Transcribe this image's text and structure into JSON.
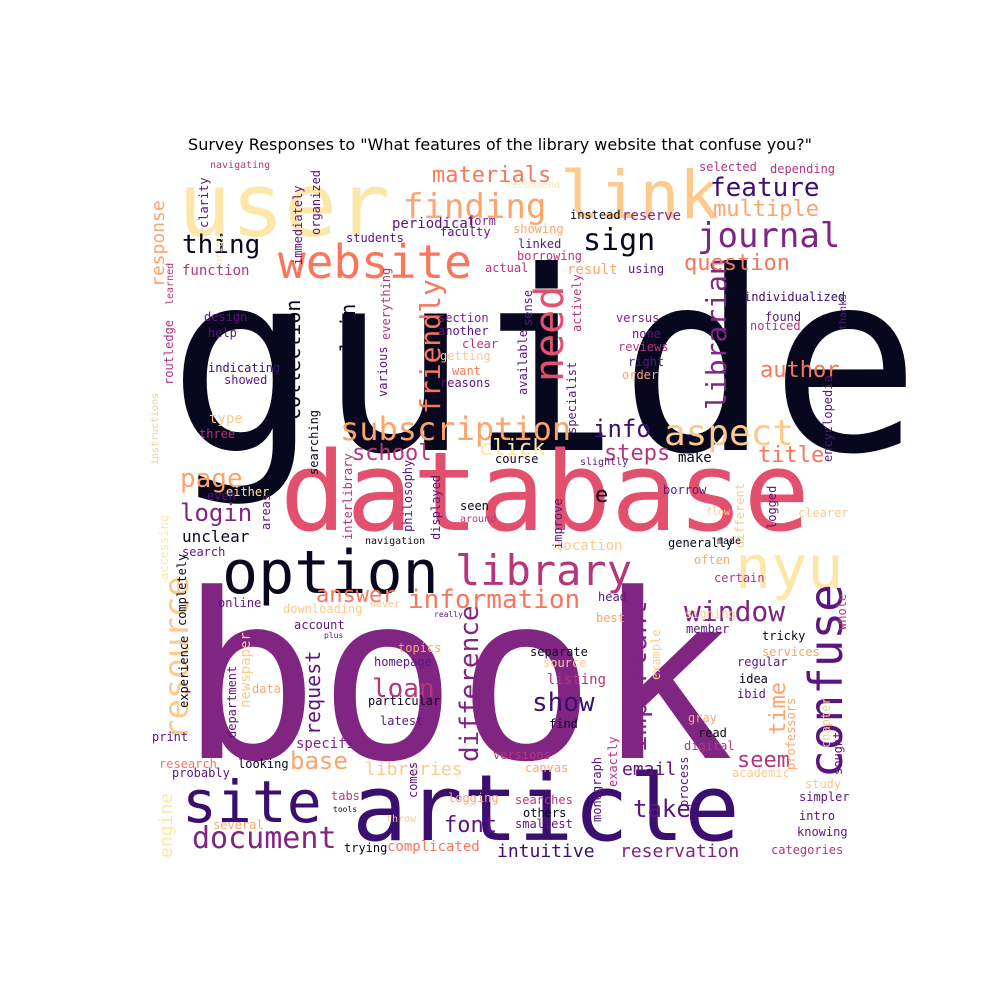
{
  "title": "Survey Responses to \"What features of the library website that confuse you?\"",
  "palette": {
    "black": "#07071d",
    "darkpurple": "#3b0f70",
    "purple": "#5a167e",
    "magenta": "#802582",
    "pink": "#b5367a",
    "red": "#e3506d",
    "salmon": "#f8765c",
    "orange": "#fca46c",
    "peach": "#fec98d",
    "cream": "#fde7a8"
  },
  "words": [
    {
      "text": "guide",
      "c": "black",
      "r": 0
    },
    {
      "text": "book",
      "c": "magenta",
      "r": 0
    },
    {
      "text": "database",
      "c": "red",
      "r": 0
    },
    {
      "text": "article",
      "c": "darkpurple",
      "r": 0
    },
    {
      "text": "user",
      "c": "cream",
      "r": 0
    },
    {
      "text": "link",
      "c": "peach",
      "r": 0
    },
    {
      "text": "option",
      "c": "black",
      "r": 0
    },
    {
      "text": "nyu",
      "c": "cream",
      "r": 0
    },
    {
      "text": "site",
      "c": "darkpurple",
      "r": 0
    },
    {
      "text": "website",
      "c": "salmon",
      "r": 0
    },
    {
      "text": "library",
      "c": "pink",
      "r": 0
    },
    {
      "text": "confuse",
      "c": "purple",
      "r": -90
    },
    {
      "text": "resource",
      "c": "peach",
      "r": -90
    },
    {
      "text": "need",
      "c": "red",
      "r": -90
    },
    {
      "text": "finding",
      "c": "orange",
      "r": 0
    },
    {
      "text": "aspect",
      "c": "peach",
      "r": 0
    },
    {
      "text": "journal",
      "c": "magenta",
      "r": 0
    },
    {
      "text": "subscription",
      "c": "orange",
      "r": 0
    },
    {
      "text": "information",
      "c": "salmon",
      "r": 0
    },
    {
      "text": "document",
      "c": "magenta",
      "r": 0
    },
    {
      "text": "sign",
      "c": "black",
      "r": 0
    },
    {
      "text": "friendly",
      "c": "salmon",
      "r": -90
    },
    {
      "text": "librarian",
      "c": "magenta",
      "r": -90
    },
    {
      "text": "window",
      "c": "magenta",
      "r": 0
    },
    {
      "text": "important",
      "c": "magenta",
      "r": -90
    },
    {
      "text": "difference",
      "c": "magenta",
      "r": -90
    },
    {
      "text": "feature",
      "c": "darkpurple",
      "r": 0
    },
    {
      "text": "thing",
      "c": "black",
      "r": 0
    },
    {
      "text": "materials",
      "c": "salmon",
      "r": 0
    },
    {
      "text": "question",
      "c": "salmon",
      "r": 0
    },
    {
      "text": "multiple",
      "c": "orange",
      "r": 0
    },
    {
      "text": "page",
      "c": "orange",
      "r": 0
    },
    {
      "text": "login",
      "c": "magenta",
      "r": 0
    },
    {
      "text": "school",
      "c": "pink",
      "r": 0
    },
    {
      "text": "info",
      "c": "darkpurple",
      "r": 0
    },
    {
      "text": "author",
      "c": "salmon",
      "r": 0
    },
    {
      "text": "title",
      "c": "salmon",
      "r": 0
    },
    {
      "text": "steps",
      "c": "pink",
      "r": 0
    },
    {
      "text": "click",
      "c": "cream",
      "r": 0
    },
    {
      "text": "answer",
      "c": "salmon",
      "r": 0
    },
    {
      "text": "loan",
      "c": "pink",
      "r": 0
    },
    {
      "text": "show",
      "c": "darkpurple",
      "r": 0
    },
    {
      "text": "base",
      "c": "orange",
      "r": 0
    },
    {
      "text": "font",
      "c": "purple",
      "r": 0
    },
    {
      "text": "take",
      "c": "purple",
      "r": 0
    },
    {
      "text": "seem",
      "c": "pink",
      "r": 0
    },
    {
      "text": "time",
      "c": "orange",
      "r": -90
    },
    {
      "text": "libraries",
      "c": "peach",
      "r": 0
    },
    {
      "text": "email",
      "c": "purple",
      "r": 0
    },
    {
      "text": "intuitive",
      "c": "darkpurple",
      "r": 0
    },
    {
      "text": "reservation",
      "c": "magenta",
      "r": 0
    },
    {
      "text": "complicated",
      "c": "salmon",
      "r": 0
    },
    {
      "text": "engine",
      "c": "cream",
      "r": -90
    },
    {
      "text": "collection",
      "c": "black",
      "r": -90
    },
    {
      "text": "explain",
      "c": "black",
      "r": -90
    },
    {
      "text": "request",
      "c": "purple",
      "r": -90
    },
    {
      "text": "response",
      "c": "orange",
      "r": -90
    },
    {
      "text": "unclear",
      "c": "black",
      "r": 0
    },
    {
      "text": "function",
      "c": "pink",
      "r": 0
    },
    {
      "text": "periodical",
      "c": "purple",
      "r": 0
    },
    {
      "text": "reserve",
      "c": "magenta",
      "r": 0
    },
    {
      "text": "result",
      "c": "orange",
      "r": 0
    },
    {
      "text": "make",
      "c": "black",
      "r": 0
    },
    {
      "text": "location",
      "c": "peach",
      "r": 0
    },
    {
      "text": "listing",
      "c": "pink",
      "r": 0
    },
    {
      "text": "account",
      "c": "purple",
      "r": 0
    },
    {
      "text": "downloading",
      "c": "peach",
      "r": 0
    },
    {
      "text": "specific",
      "c": "magenta",
      "r": 0
    },
    {
      "text": "newspaper",
      "c": "peach",
      "r": -90
    },
    {
      "text": "type",
      "c": "peach",
      "r": 0
    },
    {
      "text": "three",
      "c": "pink",
      "r": 0
    },
    {
      "text": "design",
      "c": "purple",
      "r": 0
    },
    {
      "text": "help",
      "c": "purple",
      "r": 0
    },
    {
      "text": "indicating",
      "c": "darkpurple",
      "r": 0
    },
    {
      "text": "showed",
      "c": "purple",
      "r": 0
    },
    {
      "text": "section",
      "c": "magenta",
      "r": 0
    },
    {
      "text": "another",
      "c": "purple",
      "r": 0
    },
    {
      "text": "clear",
      "c": "pink",
      "r": 0
    },
    {
      "text": "getting",
      "c": "peach",
      "r": 0
    },
    {
      "text": "want",
      "c": "salmon",
      "r": 0
    },
    {
      "text": "reasons",
      "c": "purple",
      "r": 0
    },
    {
      "text": "versus",
      "c": "magenta",
      "r": 0
    },
    {
      "text": "none",
      "c": "purple",
      "r": 0
    },
    {
      "text": "reviews",
      "c": "pink",
      "r": 0
    },
    {
      "text": "right",
      "c": "purple",
      "r": 0
    },
    {
      "text": "order",
      "c": "orange",
      "r": 0
    },
    {
      "text": "found",
      "c": "purple",
      "r": 0
    },
    {
      "text": "noticed",
      "c": "pink",
      "r": 0
    },
    {
      "text": "individualized",
      "c": "darkpurple",
      "r": 0
    },
    {
      "text": "thanks",
      "c": "purple",
      "r": -90
    },
    {
      "text": "using",
      "c": "purple",
      "r": 0
    },
    {
      "text": "selected",
      "c": "pink",
      "r": 0
    },
    {
      "text": "depending",
      "c": "pink",
      "r": 0
    },
    {
      "text": "instead",
      "c": "black",
      "r": 0
    },
    {
      "text": "form",
      "c": "magenta",
      "r": 0
    },
    {
      "text": "showing",
      "c": "orange",
      "r": 0
    },
    {
      "text": "faculty",
      "c": "purple",
      "r": 0
    },
    {
      "text": "linked",
      "c": "purple",
      "r": 0
    },
    {
      "text": "borrowing",
      "c": "pink",
      "r": 0
    },
    {
      "text": "actual",
      "c": "pink",
      "r": 0
    },
    {
      "text": "students",
      "c": "purple",
      "r": 0
    },
    {
      "text": "recommend",
      "c": "cream",
      "r": 0
    },
    {
      "text": "navigating",
      "c": "pink",
      "r": 0
    },
    {
      "text": "clarity",
      "c": "purple",
      "r": -90
    },
    {
      "text": "original",
      "c": "cream",
      "r": -90
    },
    {
      "text": "immediately",
      "c": "purple",
      "r": -90
    },
    {
      "text": "organized",
      "c": "purple",
      "r": -90
    },
    {
      "text": "everything",
      "c": "pink",
      "r": -90
    },
    {
      "text": "various",
      "c": "purple",
      "r": -90
    },
    {
      "text": "learned",
      "c": "pink",
      "r": -90
    },
    {
      "text": "routledge",
      "c": "pink",
      "r": -90
    },
    {
      "text": "instructions",
      "c": "peach",
      "r": -90
    },
    {
      "text": "searching",
      "c": "black",
      "r": -90
    },
    {
      "text": "available",
      "c": "purple",
      "r": -90
    },
    {
      "text": "sense",
      "c": "purple",
      "r": -90
    },
    {
      "text": "specialist",
      "c": "purple",
      "r": -90
    },
    {
      "text": "actively",
      "c": "pink",
      "r": -90
    },
    {
      "text": "encyclopedia",
      "c": "purple",
      "r": -90
    },
    {
      "text": "course",
      "c": "black",
      "r": 0
    },
    {
      "text": "slightly",
      "c": "purple",
      "r": 0
    },
    {
      "text": "borrow",
      "c": "purple",
      "r": 0
    },
    {
      "text": "logged",
      "c": "purple",
      "r": -90
    },
    {
      "text": "different",
      "c": "peach",
      "r": -90
    },
    {
      "text": "improve",
      "c": "purple",
      "r": -90
    },
    {
      "text": "seen",
      "c": "black",
      "r": 0
    },
    {
      "text": "around",
      "c": "pink",
      "r": 0
    },
    {
      "text": "e",
      "c": "black",
      "r": 0
    },
    {
      "text": "flow",
      "c": "peach",
      "r": 0
    },
    {
      "text": "clearer",
      "c": "peach",
      "r": 0
    },
    {
      "text": "made",
      "c": "black",
      "r": 0
    },
    {
      "text": "generally",
      "c": "black",
      "r": 0
    },
    {
      "text": "navigation",
      "c": "black",
      "r": 0
    },
    {
      "text": "interlibrary",
      "c": "pink",
      "r": -90
    },
    {
      "text": "philosophy",
      "c": "purple",
      "r": -90
    },
    {
      "text": "displayed",
      "c": "purple",
      "r": -90
    },
    {
      "text": "areas",
      "c": "purple",
      "r": -90
    },
    {
      "text": "either",
      "c": "cream",
      "r": 0
    },
    {
      "text": "even",
      "c": "purple",
      "r": 0
    },
    {
      "text": "search",
      "c": "purple",
      "r": 0
    },
    {
      "text": "accessing",
      "c": "cream",
      "r": -90
    },
    {
      "text": "completely",
      "c": "black",
      "r": -90
    },
    {
      "text": "online",
      "c": "purple",
      "r": 0
    },
    {
      "text": "often",
      "c": "orange",
      "r": 0
    },
    {
      "text": "certain",
      "c": "pink",
      "r": 0
    },
    {
      "text": "head",
      "c": "purple",
      "r": 0
    },
    {
      "text": "best",
      "c": "orange",
      "r": 0
    },
    {
      "text": "signing",
      "c": "peach",
      "r": 0
    },
    {
      "text": "member",
      "c": "purple",
      "r": 0
    },
    {
      "text": "whole",
      "c": "pink",
      "r": -90
    },
    {
      "text": "tricky",
      "c": "black",
      "r": 0
    },
    {
      "text": "services",
      "c": "orange",
      "r": 0
    },
    {
      "text": "regular",
      "c": "purple",
      "r": 0
    },
    {
      "text": "idea",
      "c": "black",
      "r": 0
    },
    {
      "text": "ibid",
      "c": "purple",
      "r": 0
    },
    {
      "text": "example",
      "c": "peach",
      "r": -90
    },
    {
      "text": "topics",
      "c": "orange",
      "r": 0
    },
    {
      "text": "separate",
      "c": "black",
      "r": 0
    },
    {
      "text": "source",
      "c": "peach",
      "r": 0
    },
    {
      "text": "homepage",
      "c": "purple",
      "r": 0
    },
    {
      "text": "particular",
      "c": "black",
      "r": 0
    },
    {
      "text": "latest",
      "c": "purple",
      "r": 0
    },
    {
      "text": "find",
      "c": "black",
      "r": 0
    },
    {
      "text": "never",
      "c": "peach",
      "r": 0
    },
    {
      "text": "really",
      "c": "purple",
      "r": 0
    },
    {
      "text": "plus",
      "c": "purple",
      "r": 0
    },
    {
      "text": "data",
      "c": "orange",
      "r": 0
    },
    {
      "text": "department",
      "c": "purple",
      "r": -90
    },
    {
      "text": "experience",
      "c": "black",
      "r": -90
    },
    {
      "text": "print",
      "c": "purple",
      "r": 0
    },
    {
      "text": "research",
      "c": "salmon",
      "r": 0
    },
    {
      "text": "probably",
      "c": "purple",
      "r": 0
    },
    {
      "text": "looking",
      "c": "black",
      "r": 0
    },
    {
      "text": "versions",
      "c": "pink",
      "r": 0
    },
    {
      "text": "canvas",
      "c": "orange",
      "r": 0
    },
    {
      "text": "gray",
      "c": "orange",
      "r": 0
    },
    {
      "text": "read",
      "c": "black",
      "r": 0
    },
    {
      "text": "digital",
      "c": "pink",
      "r": 0
    },
    {
      "text": "academic",
      "c": "peach",
      "r": 0
    },
    {
      "text": "professors",
      "c": "orange",
      "r": -90
    },
    {
      "text": "chapter",
      "c": "peach",
      "r": -90
    },
    {
      "text": "sought",
      "c": "purple",
      "r": -90
    },
    {
      "text": "study",
      "c": "peach",
      "r": 0
    },
    {
      "text": "simpler",
      "c": "purple",
      "r": 0
    },
    {
      "text": "intro",
      "c": "purple",
      "r": 0
    },
    {
      "text": "knowing",
      "c": "purple",
      "r": 0
    },
    {
      "text": "categories",
      "c": "pink",
      "r": 0
    },
    {
      "text": "process",
      "c": "purple",
      "r": -90
    },
    {
      "text": "exactly",
      "c": "pink",
      "r": -90
    },
    {
      "text": "monograph",
      "c": "purple",
      "r": -90
    },
    {
      "text": "comes",
      "c": "purple",
      "r": -90
    },
    {
      "text": "logging",
      "c": "orange",
      "r": 0
    },
    {
      "text": "searches",
      "c": "pink",
      "r": 0
    },
    {
      "text": "others",
      "c": "black",
      "r": 0
    },
    {
      "text": "smallest",
      "c": "purple",
      "r": 0
    },
    {
      "text": "tabs",
      "c": "pink",
      "r": 0
    },
    {
      "text": "tools",
      "c": "black",
      "r": 0
    },
    {
      "text": "throw",
      "c": "peach",
      "r": 0
    },
    {
      "text": "several",
      "c": "orange",
      "r": 0
    },
    {
      "text": "trying",
      "c": "black",
      "r": 0
    }
  ]
}
